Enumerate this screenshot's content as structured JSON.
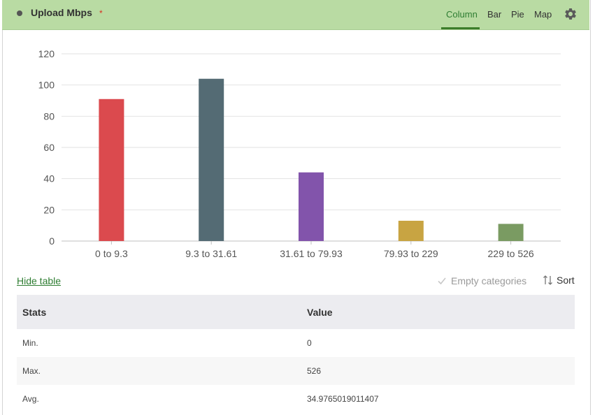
{
  "header": {
    "title": "Upload Mbps",
    "required_mark": "*",
    "tabs": [
      {
        "label": "Column",
        "active": true
      },
      {
        "label": "Bar",
        "active": false
      },
      {
        "label": "Pie",
        "active": false
      },
      {
        "label": "Map",
        "active": false
      }
    ],
    "settings_icon": "gear-icon"
  },
  "chart_data": {
    "type": "bar",
    "categories": [
      "0 to 9.3",
      "9.3 to 31.61",
      "31.61 to 79.93",
      "79.93 to 229",
      "229 to 526"
    ],
    "values": [
      91,
      104,
      44,
      13,
      11
    ],
    "colors": [
      "#db4a4e",
      "#546b74",
      "#8254ab",
      "#c8a442",
      "#7a9b62"
    ],
    "ylim": [
      0,
      120
    ],
    "yticks": [
      "0",
      "20",
      "40",
      "60",
      "80",
      "100",
      "120"
    ],
    "grid": true
  },
  "controls": {
    "hide_table": "Hide table",
    "empty_categories": "Empty categories",
    "empty_categories_checked": true,
    "sort": "Sort"
  },
  "table": {
    "headers": [
      "Stats",
      "Value"
    ],
    "rows": [
      [
        "Min.",
        "0"
      ],
      [
        "Max.",
        "526"
      ],
      [
        "Avg.",
        "34.9765019011407"
      ]
    ]
  }
}
